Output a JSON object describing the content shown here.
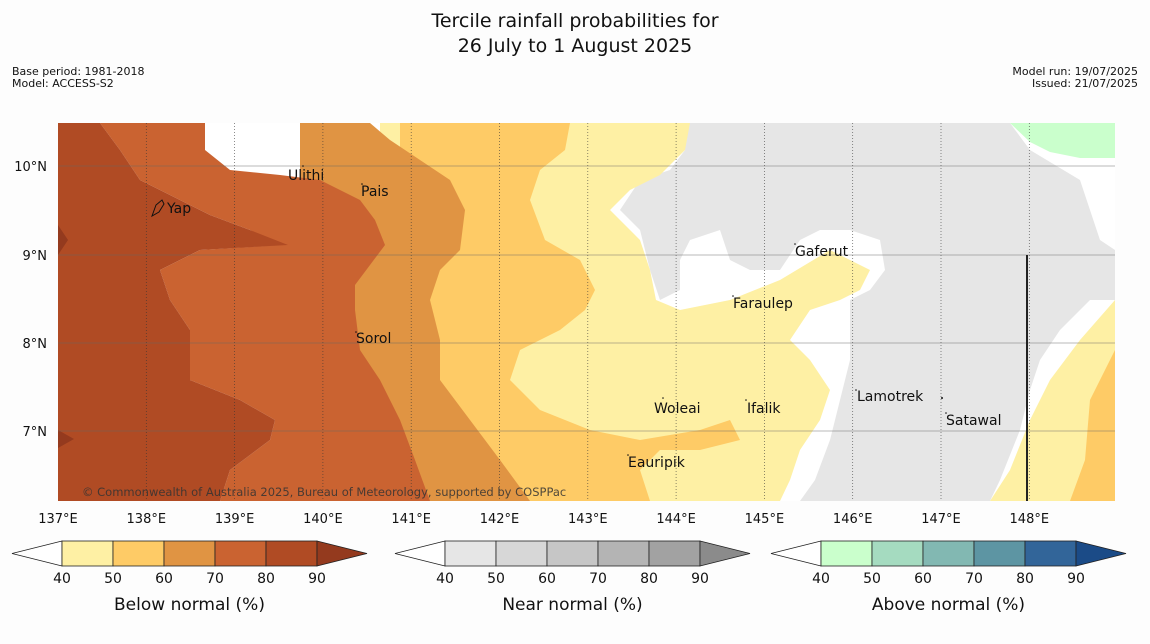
{
  "header": {
    "title_line1": "Tercile rainfall probabilities for",
    "title_line2": "26 July to 1 August 2025",
    "base_period": "Base period: 1981-2018",
    "model": "Model: ACCESS-S2",
    "model_run": "Model run: 19/07/2025",
    "issued": "Issued: 21/07/2025"
  },
  "map": {
    "lon_labels": [
      "137°E",
      "138°E",
      "139°E",
      "140°E",
      "141°E",
      "142°E",
      "143°E",
      "144°E",
      "145°E",
      "146°E",
      "147°E",
      "148°E"
    ],
    "lat_labels": [
      "10°N",
      "9°N",
      "8°N",
      "7°N"
    ],
    "places": [
      "Yap",
      "Ulithi",
      "Pais",
      "Gaferut",
      "Faraulep",
      "Sorol",
      "Lamotrek",
      "Woleai",
      "Ifalik",
      "Satawal",
      "Eauripik"
    ],
    "copyright": "© Commonwealth of Australia 2025, Bureau of Meteorology, supported by COSPPac",
    "colors": {
      "land_none": "#ffffff",
      "near_40": "#e6e6e6",
      "below_40": "#fef0a4",
      "below_50": "#fecb66",
      "below_60": "#e09443",
      "below_70": "#ca6331",
      "below_80": "#b04b24",
      "above_40": "#caffcc"
    }
  },
  "colorbars": [
    {
      "label": "Below normal (%)",
      "ticks": [
        "40",
        "50",
        "60",
        "70",
        "80",
        "90"
      ],
      "colors": [
        "#fef0a4",
        "#fecb66",
        "#e09443",
        "#ca6331",
        "#b04b24"
      ],
      "extend": "#943a1e"
    },
    {
      "label": "Near normal (%)",
      "ticks": [
        "40",
        "50",
        "60",
        "70",
        "80",
        "90"
      ],
      "colors": [
        "#e6e6e6",
        "#d7d7d7",
        "#c6c6c6",
        "#b4b4b4",
        "#a2a2a2"
      ],
      "extend": "#8b8b8b"
    },
    {
      "label": "Above normal (%)",
      "ticks": [
        "40",
        "50",
        "60",
        "70",
        "80",
        "90"
      ],
      "colors": [
        "#caffcc",
        "#a5dbc0",
        "#82b8b2",
        "#5d95a3",
        "#326599"
      ],
      "extend": "#1b4b87"
    }
  ]
}
